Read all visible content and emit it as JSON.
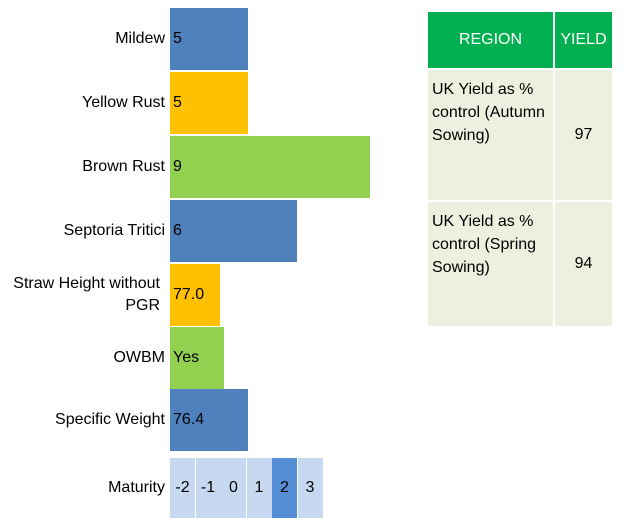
{
  "ratings": [
    {
      "label": "Mildew",
      "value": "5"
    },
    {
      "label": "Yellow Rust",
      "value": "5"
    },
    {
      "label": "Brown Rust",
      "value": "9"
    },
    {
      "label": "Septoria Tritici",
      "value": "6"
    },
    {
      "label": "Straw Height without PGR",
      "value": "77.0"
    },
    {
      "label": "OWBM",
      "value": "Yes"
    },
    {
      "label": "Specific Weight",
      "value": "76.4"
    }
  ],
  "maturity": {
    "label": "Maturity",
    "scale": [
      -2,
      -1,
      0,
      1,
      2,
      3
    ],
    "value": 2
  },
  "table": {
    "header": [
      "REGION",
      "YIELD"
    ],
    "rows": [
      [
        "UK Yield as % control (Autumn Sowing)",
        "97"
      ],
      [
        "UK Yield as % control (Spring Sowing)",
        "94"
      ]
    ]
  }
}
